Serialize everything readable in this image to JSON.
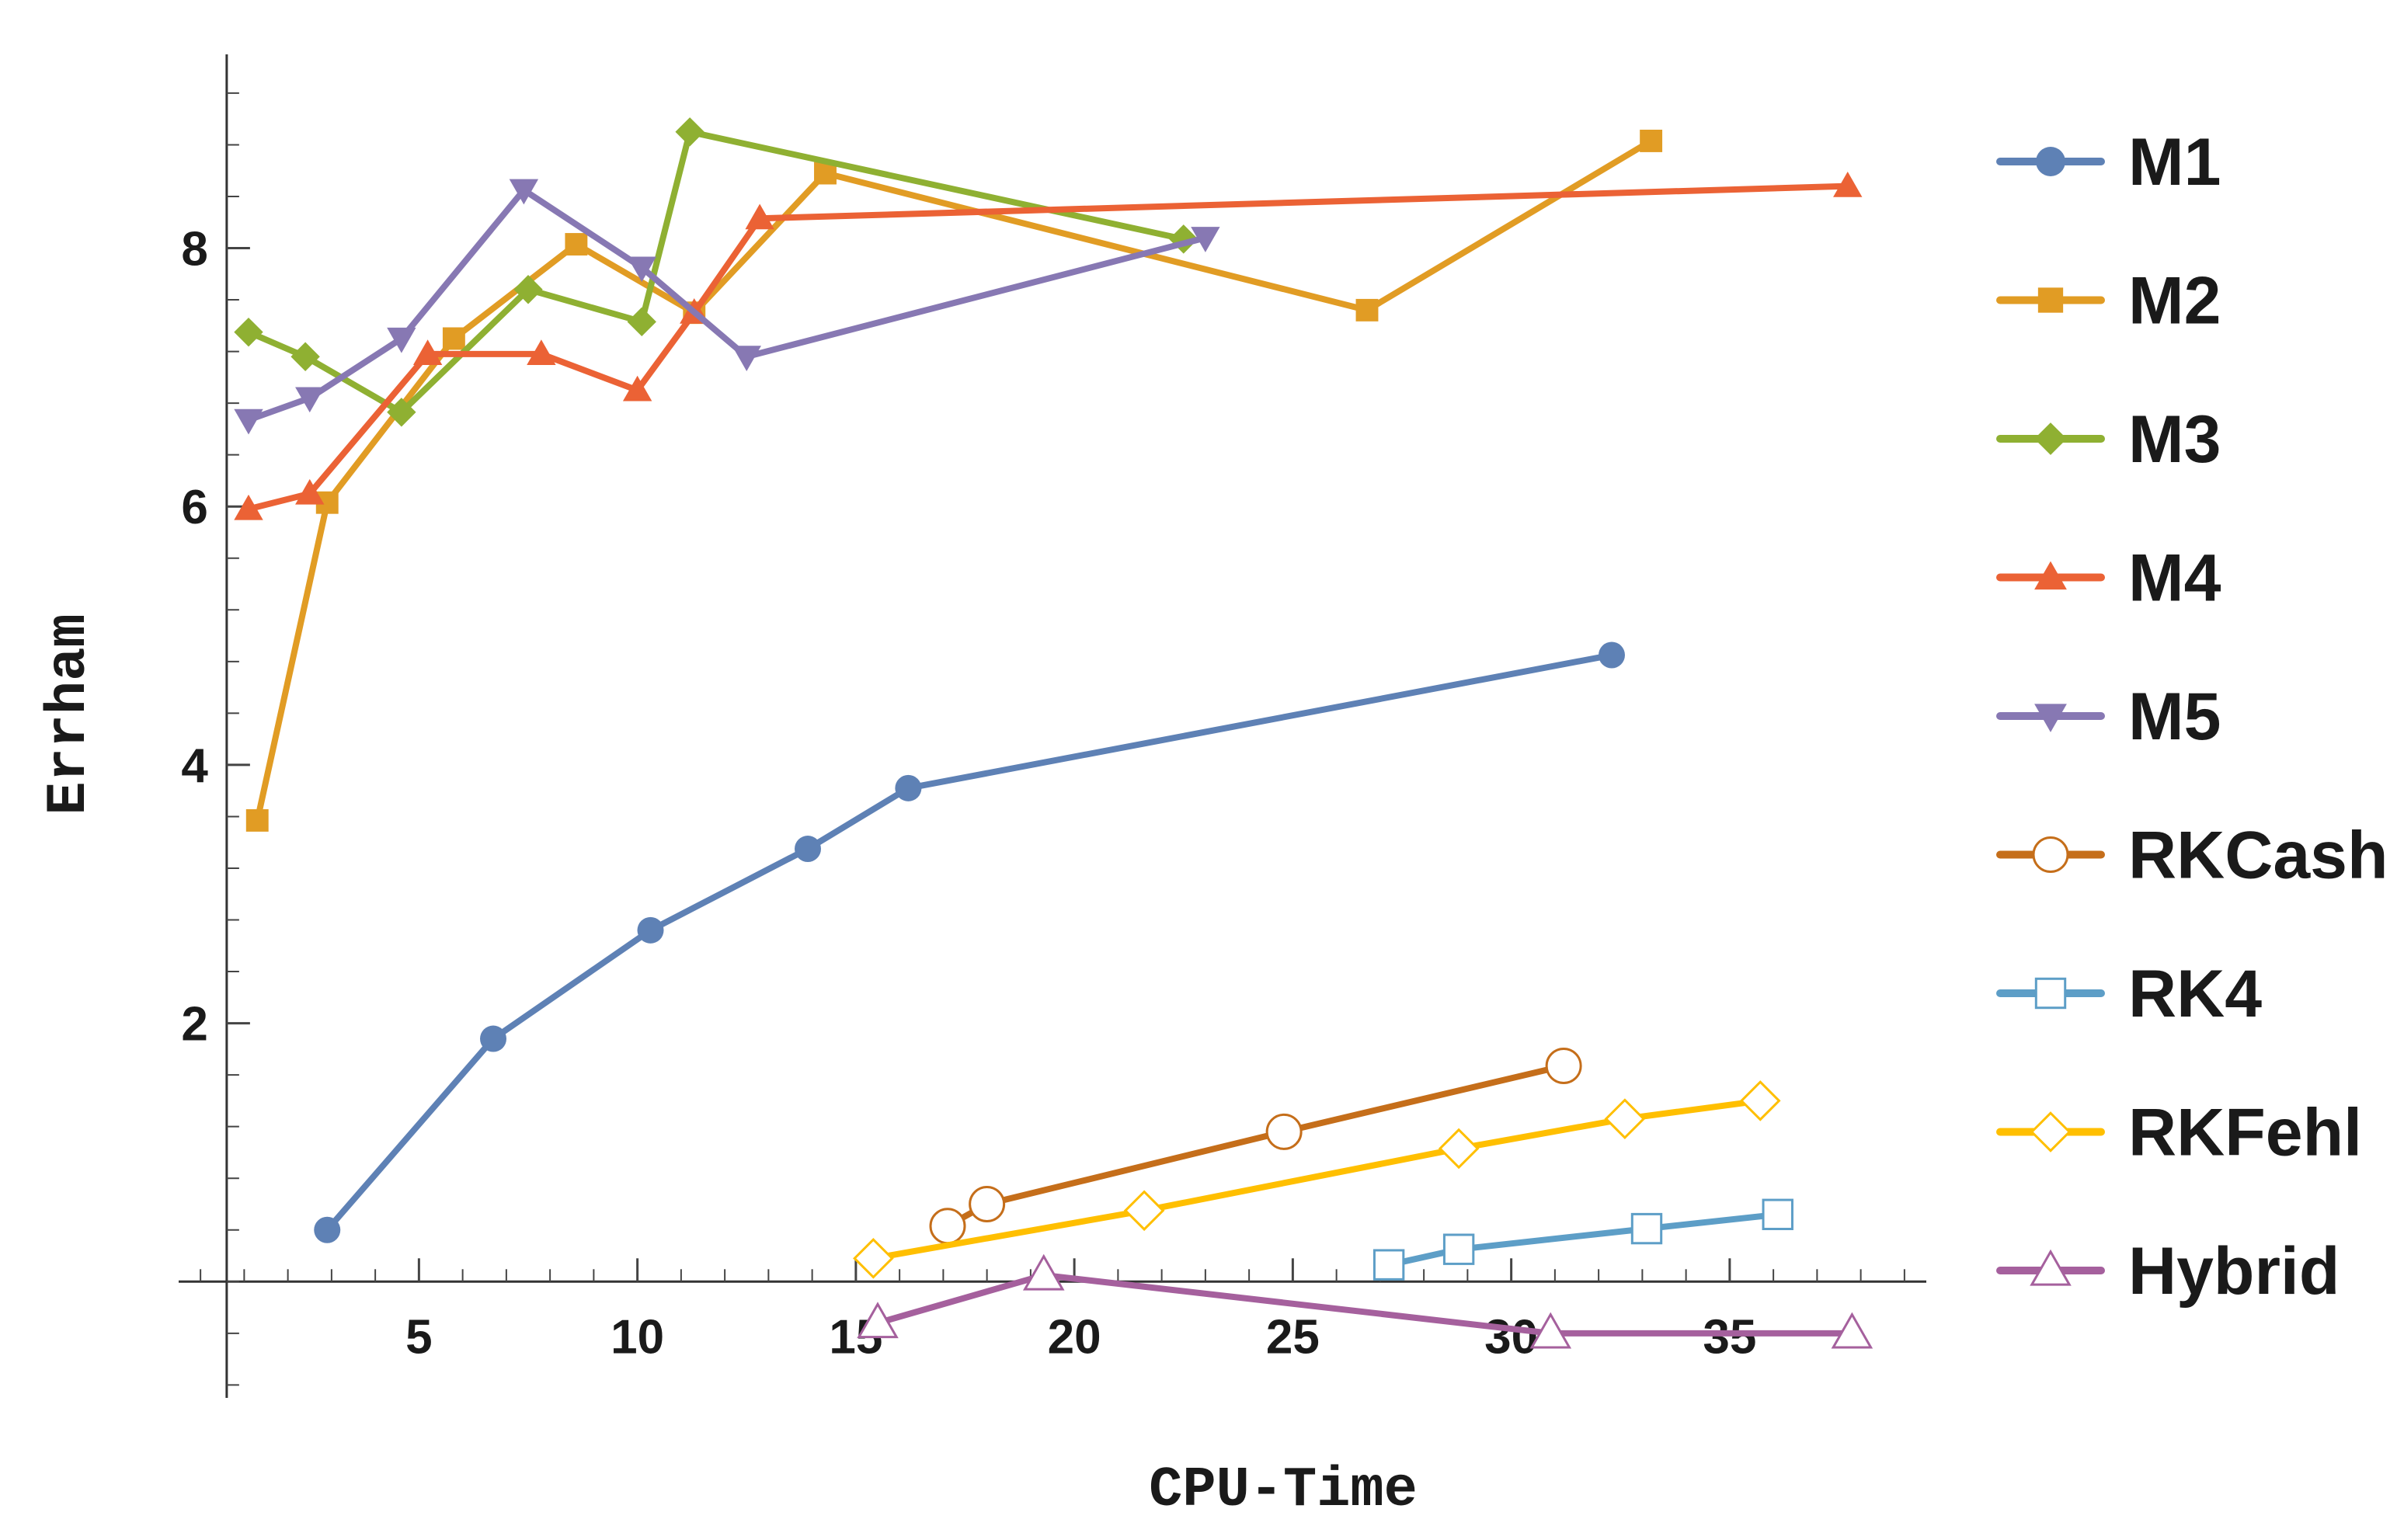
{
  "chart_data": {
    "type": "line",
    "title": "",
    "xlabel": "CPU-Time",
    "ylabel": "Errham",
    "xlim": [
      -0.5,
      39.5
    ],
    "ylim": [
      -0.9,
      9.5
    ],
    "x_origin": 0.6,
    "y_origin": 0,
    "xticks": [
      {
        "value": 5,
        "label": "5"
      },
      {
        "value": 10,
        "label": "10"
      },
      {
        "value": 15,
        "label": "15"
      },
      {
        "value": 20,
        "label": "20"
      },
      {
        "value": 25,
        "label": "25"
      },
      {
        "value": 30,
        "label": "30"
      },
      {
        "value": 35,
        "label": "35"
      }
    ],
    "yticks": [
      {
        "value": 2,
        "label": "2"
      },
      {
        "value": 4,
        "label": "4"
      },
      {
        "value": 6,
        "label": "6"
      },
      {
        "value": 8,
        "label": "8"
      }
    ],
    "x_minor_step": 1,
    "y_minor_step": 0.4,
    "legend_position": "right",
    "series": [
      {
        "name": "M1",
        "color": "#5E81B5",
        "marker": "circle-filled",
        "x": [
          2.9,
          6.7,
          10.3,
          13.9,
          16.2,
          32.3
        ],
        "y": [
          0.4,
          1.88,
          2.72,
          3.35,
          3.82,
          4.85
        ]
      },
      {
        "name": "M2",
        "color": "#E19C24",
        "marker": "square-filled",
        "x": [
          1.3,
          2.9,
          5.8,
          8.6,
          11.3,
          14.3,
          26.7,
          33.2
        ],
        "y": [
          3.57,
          6.03,
          7.3,
          8.03,
          7.5,
          8.58,
          7.52,
          8.83
        ]
      },
      {
        "name": "M3",
        "color": "#8FB032",
        "marker": "diamond-filled",
        "x": [
          1.1,
          2.4,
          4.6,
          7.5,
          10.1,
          11.2,
          22.5
        ],
        "y": [
          7.35,
          7.16,
          6.73,
          7.68,
          7.43,
          8.9,
          8.07
        ]
      },
      {
        "name": "M4",
        "color": "#EB6235",
        "marker": "triangle-up-filled",
        "x": [
          1.1,
          2.5,
          5.2,
          7.8,
          10.0,
          11.3,
          12.8,
          37.7
        ],
        "y": [
          5.98,
          6.1,
          7.18,
          7.18,
          6.9,
          7.5,
          8.23,
          8.48
        ]
      },
      {
        "name": "M5",
        "color": "#8778B3",
        "marker": "triangle-down-filled",
        "x": [
          1.1,
          2.5,
          4.6,
          7.4,
          10.1,
          12.5,
          23.0
        ],
        "y": [
          6.67,
          6.84,
          7.3,
          8.45,
          7.85,
          7.16,
          8.08
        ]
      },
      {
        "name": "RKCash",
        "color": "#C56E1A",
        "marker": "circle-open",
        "x": [
          17.1,
          18.0,
          24.8,
          31.2
        ],
        "y": [
          0.43,
          0.6,
          1.16,
          1.67
        ]
      },
      {
        "name": "RK4",
        "color": "#5D9EC7",
        "marker": "square-open",
        "x": [
          27.2,
          28.8,
          33.1,
          36.1
        ],
        "y": [
          0.13,
          0.25,
          0.41,
          0.52
        ]
      },
      {
        "name": "RKFehl",
        "color": "#FFBF00",
        "marker": "diamond-open",
        "x": [
          15.4,
          21.6,
          28.8,
          32.6,
          35.7
        ],
        "y": [
          0.18,
          0.55,
          1.03,
          1.26,
          1.4
        ]
      },
      {
        "name": "Hybrid",
        "color": "#A5609D",
        "marker": "triangle-up-open",
        "x": [
          15.5,
          19.3,
          30.9,
          37.8
        ],
        "y": [
          -0.32,
          0.05,
          -0.4,
          -0.4
        ]
      }
    ]
  }
}
